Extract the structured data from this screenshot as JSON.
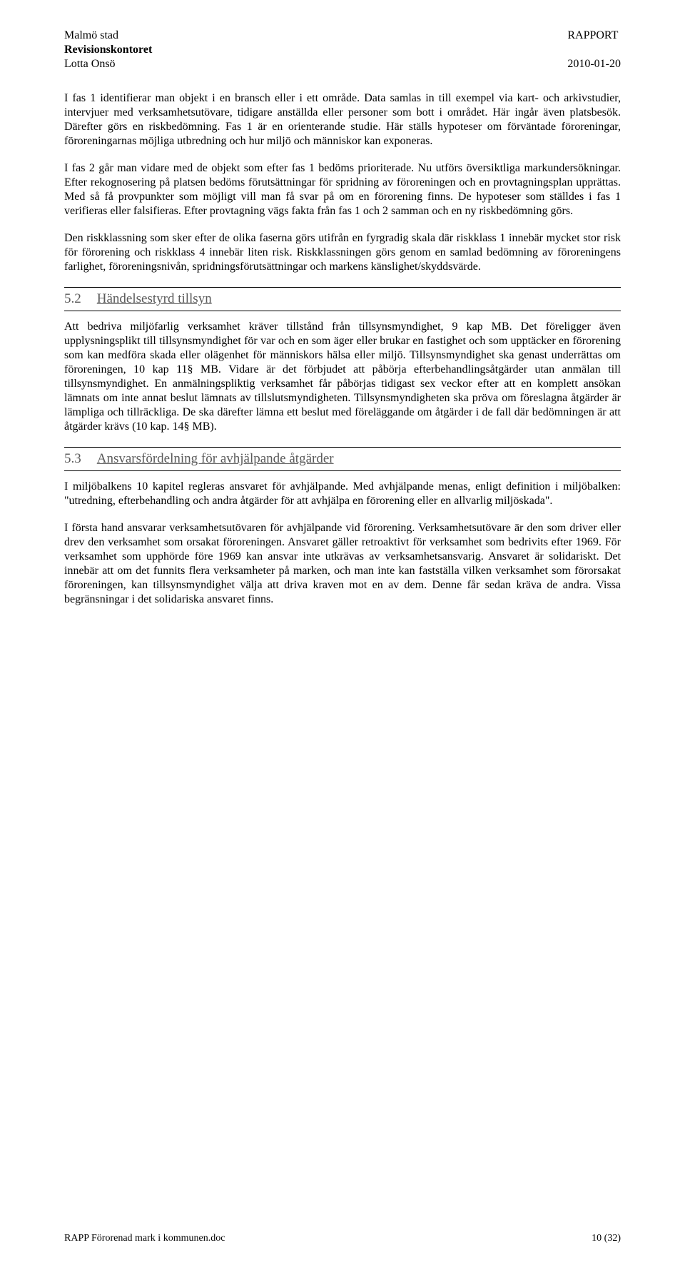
{
  "header": {
    "org": "Malmö stad",
    "dept": "Revisionskontoret",
    "author": "Lotta Onsö",
    "doctype": "RAPPORT",
    "date": "2010-01-20"
  },
  "paragraphs": {
    "p1": "I fas 1 identifierar man objekt i en bransch eller i ett område. Data samlas in till exempel via kart- och arkivstudier, intervjuer med verksamhetsutövare, tidigare anställda eller personer som bott i området. Här ingår även platsbesök. Därefter görs en riskbedömning. Fas 1 är en orienterande studie. Här ställs hypoteser om förväntade föroreningar, föroreningarnas möjliga utbredning och hur miljö och människor kan exponeras.",
    "p2": "I fas 2 går man vidare med de objekt som efter fas 1 bedöms prioriterade. Nu utförs översiktliga markundersökningar. Efter rekognosering på platsen bedöms förutsättningar för spridning av föroreningen och en provtagningsplan upprättas. Med så få provpunkter som möjligt vill man få svar på om en förorening finns. De hypoteser som ställdes i fas 1 verifieras eller falsifieras. Efter provtagning vägs fakta från fas 1 och 2 samman och en ny riskbedömning görs.",
    "p3": "Den riskklassning som sker efter de olika faserna görs utifrån en fyrgradig skala där riskklass 1 innebär mycket stor risk för förorening och riskklass 4 innebär liten risk. Riskklassningen görs genom en samlad bedömning av föroreningens farlighet, föroreningsnivån, spridningsförutsättningar och markens känslighet/skyddsvärde.",
    "p4": "Att bedriva miljöfarlig verksamhet kräver tillstånd från tillsynsmyndighet, 9 kap MB. Det föreligger även upplysningsplikt till tillsynsmyndighet för var och en som äger eller brukar en fastighet och som upptäcker en förorening som kan medföra skada eller olägenhet för människors hälsa eller miljö. Tillsynsmyndighet ska genast underrättas om föroreningen, 10 kap 11§ MB. Vidare är det förbjudet att påbörja efterbehandlingsåtgärder utan anmälan till tillsynsmyndighet. En anmälningspliktig verksamhet får påbörjas tidigast sex veckor efter att en komplett ansökan lämnats om inte annat beslut lämnats av tillslutsmyndigheten.  Tillsynsmyndigheten ska pröva om föreslagna åtgärder är lämpliga och tillräckliga. De ska därefter lämna ett beslut med föreläggande om åtgärder i de fall där bedömningen är att åtgärder krävs (10 kap. 14§ MB).",
    "p5": "I miljöbalkens 10 kapitel regleras ansvaret för avhjälpande. Med avhjälpande menas, enligt definition i miljöbalken: \"utredning, efterbehandling och andra åtgärder för att avhjälpa en förorening eller en allvarlig miljöskada\".",
    "p6": "I första hand ansvarar verksamhetsutövaren för avhjälpande vid förorening. Verksamhetsutövare är den som driver eller drev den verksamhet som orsakat föroreningen. Ansvaret gäller retroaktivt för verksamhet som bedrivits efter 1969. För verksamhet som upphörde före 1969 kan ansvar inte utkrävas av verksamhetsansvarig. Ansvaret är solidariskt. Det innebär att om det funnits flera verksamheter på marken, och man inte kan fastställa vilken verksamhet som förorsakat föroreningen, kan tillsynsmyndighet välja att driva kraven mot en av dem. Denne får sedan kräva de andra. Vissa begränsningar i det solidariska ansvaret finns."
  },
  "sections": {
    "s52": {
      "num": "5.2",
      "title": "Händelsestyrd tillsyn"
    },
    "s53": {
      "num": "5.3",
      "title": "Ansvarsfördelning för avhjälpande åtgärder"
    }
  },
  "footer": {
    "filename": "RAPP Förorenad mark i kommunen.doc",
    "page": "10 (32)"
  }
}
